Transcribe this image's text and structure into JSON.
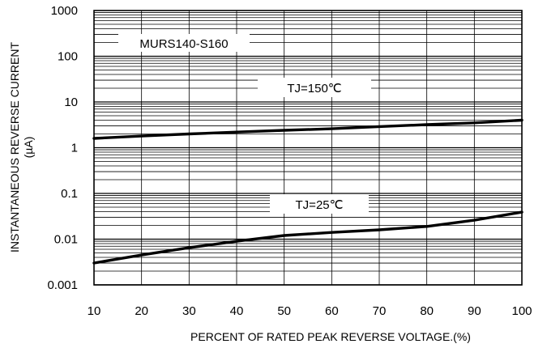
{
  "chart_data": {
    "type": "line",
    "title": "",
    "xlabel": "PERCENT OF RATED PEAK REVERSE VOLTAGE.(%)",
    "ylabel": [
      "INSTANTANEOUS REVERSE CURRENT",
      "(µA)"
    ],
    "xlim": [
      10,
      100
    ],
    "ylim": [
      0.001,
      1000
    ],
    "yscale": "log",
    "x_ticks": [
      10,
      20,
      30,
      40,
      50,
      60,
      70,
      80,
      90,
      100
    ],
    "x_tick_labels": [
      "10",
      "20",
      "30",
      "40",
      "50",
      "60",
      "70",
      "80",
      "90",
      "100"
    ],
    "y_ticks": [
      0.001,
      0.01,
      0.1,
      1,
      10,
      100,
      1000
    ],
    "y_tick_labels": [
      "0.001",
      "0.01",
      "0.1",
      "1",
      "10",
      "100",
      "1000"
    ],
    "grid": true,
    "annotations": [
      {
        "text": "MURS140-S160"
      },
      {
        "text": "TJ=150℃"
      },
      {
        "text": "TJ=25℃"
      }
    ],
    "series": [
      {
        "x": [
          10,
          20,
          30,
          40,
          50,
          60,
          70,
          80,
          90,
          100
        ],
        "y": [
          1.6,
          1.8,
          2.0,
          2.2,
          2.4,
          2.6,
          2.9,
          3.2,
          3.5,
          4.0
        ]
      },
      {
        "x": [
          10,
          20,
          30,
          40,
          50,
          60,
          70,
          80,
          90,
          100
        ],
        "y": [
          0.003,
          0.0045,
          0.0065,
          0.009,
          0.012,
          0.014,
          0.016,
          0.019,
          0.026,
          0.039
        ]
      }
    ]
  }
}
